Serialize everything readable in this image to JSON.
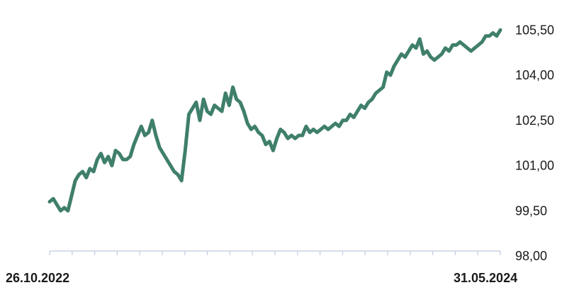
{
  "colors": {
    "series": "#3f7f6b",
    "axis": "#c9d4e3",
    "text": "#1a1a1a"
  },
  "chart_data": {
    "type": "line",
    "title": "",
    "xlabel": "",
    "ylabel": "",
    "x_start_label": "26.10.2022",
    "x_end_label": "31.05.2024",
    "y_axis_position": "right",
    "grid": false,
    "legend": "none",
    "ylim": [
      98,
      106
    ],
    "y_ticks": [
      "98,00",
      "99,50",
      "101,00",
      "102,50",
      "104,00",
      "105,50"
    ],
    "y_tick_values": [
      98,
      99.5,
      101,
      102.5,
      104,
      105.5
    ],
    "series": [
      {
        "name": "",
        "values": [
          99.8,
          99.9,
          99.7,
          99.5,
          99.6,
          99.5,
          100.0,
          100.5,
          100.7,
          100.8,
          100.6,
          100.9,
          100.8,
          101.2,
          101.4,
          101.1,
          101.3,
          101.0,
          101.5,
          101.4,
          101.2,
          101.2,
          101.3,
          101.7,
          102.0,
          102.3,
          102.0,
          102.1,
          102.5,
          102.0,
          101.6,
          101.4,
          101.2,
          101.0,
          100.8,
          100.7,
          100.5,
          101.5,
          102.7,
          102.9,
          103.1,
          102.5,
          103.2,
          102.8,
          102.7,
          103.0,
          102.9,
          102.8,
          103.4,
          103.0,
          103.6,
          103.2,
          103.1,
          102.8,
          102.4,
          102.2,
          102.3,
          102.1,
          102.0,
          101.7,
          101.8,
          101.5,
          101.9,
          102.2,
          102.1,
          101.9,
          102.0,
          101.9,
          102.0,
          102.0,
          102.3,
          102.1,
          102.2,
          102.1,
          102.2,
          102.3,
          102.2,
          102.3,
          102.4,
          102.3,
          102.5,
          102.5,
          102.7,
          102.6,
          102.8,
          103.0,
          102.9,
          103.1,
          103.2,
          103.4,
          103.5,
          103.6,
          104.1,
          104.0,
          104.3,
          104.5,
          104.7,
          104.6,
          104.8,
          105.0,
          104.9,
          105.2,
          104.7,
          104.8,
          104.6,
          104.5,
          104.6,
          104.7,
          104.9,
          104.8,
          105.0,
          105.0,
          105.1,
          105.0,
          104.9,
          104.8,
          104.9,
          105.0,
          105.1,
          105.3,
          105.3,
          105.4,
          105.3,
          105.5
        ]
      }
    ]
  }
}
